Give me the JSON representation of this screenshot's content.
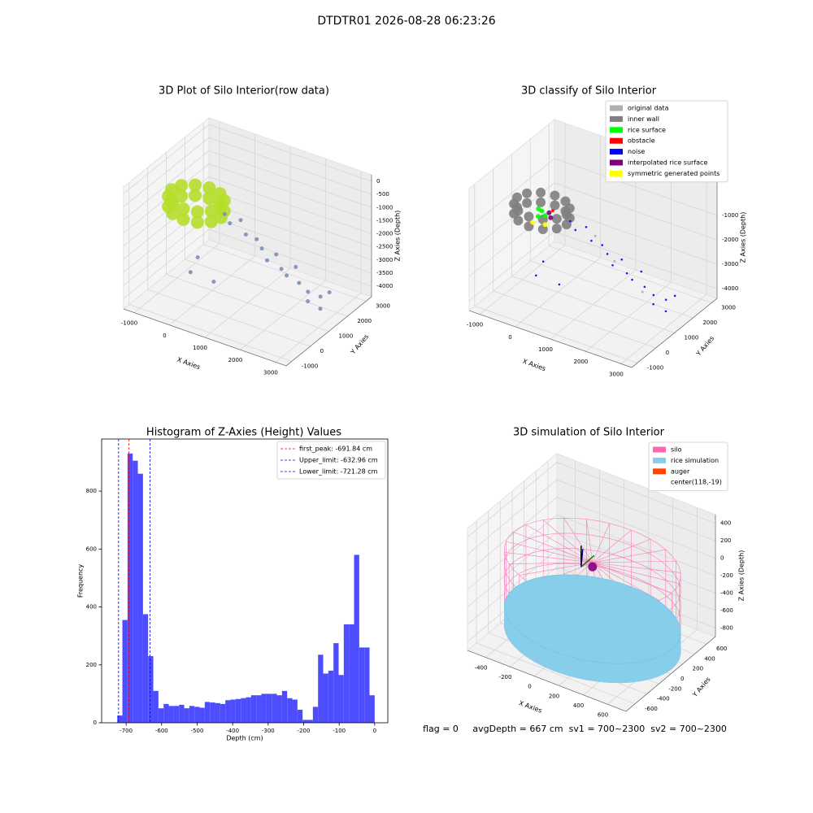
{
  "title": "DTDTR01 2026-08-28 06:23:26",
  "footer": "flag = 0     avgDepth = 667 cm  sv1 = 700~2300  sv2 = 700~2300",
  "chart_data": [
    {
      "type": "scatter3d",
      "title": "3D Plot of Silo Interior(row data)",
      "xlabel": "X Axies",
      "ylabel": "Y Axies",
      "zlabel": "Z Axies (Depth)",
      "xlim": [
        -1300,
        3300
      ],
      "ylim": [
        -1300,
        3300
      ],
      "zlim": [
        -4400,
        250
      ],
      "xticks": [
        -1000,
        0,
        1000,
        2000,
        3000
      ],
      "yticks": [
        -1000,
        0,
        1000,
        2000,
        3000
      ],
      "zticks": [
        0,
        -500,
        -1000,
        -1500,
        -2000,
        -2500,
        -3000,
        -3500,
        -4000
      ],
      "series": [
        {
          "color": "#b5de2b",
          "x": [
            250,
            156,
            -100,
            -450,
            -800,
            -1056,
            -1150,
            -1056,
            -800,
            -450,
            -100,
            156,
            250,
            156,
            -100,
            -450,
            -800,
            -1056,
            -1150,
            -1056,
            -800,
            -450,
            -100,
            156
          ],
          "y": [
            1000,
            1350,
            1606,
            1700,
            1606,
            1350,
            1000,
            650,
            394,
            300,
            394,
            650,
            1000,
            1350,
            1606,
            1700,
            1606,
            1350,
            1000,
            650,
            394,
            300,
            394,
            650
          ],
          "z": [
            -1100,
            -1100,
            -1100,
            -1100,
            -1100,
            -1100,
            -1100,
            -1100,
            -1100,
            -1100,
            -1100,
            -1100,
            -1500,
            -1500,
            -1500,
            -1500,
            -1500,
            -1500,
            -1500,
            -1500,
            -1500,
            -1500,
            -1500,
            -1500
          ]
        },
        {
          "color": "#7d8fb3",
          "x": [
            300,
            500,
            700,
            900,
            1100,
            1300,
            1500,
            1600,
            1800,
            2000,
            2100,
            2300,
            2500,
            2600,
            2800,
            2900,
            3000,
            -200,
            -300,
            200
          ],
          "y": [
            1100,
            1000,
            1200,
            1100,
            1300,
            1200,
            1100,
            1400,
            1300,
            1200,
            1500,
            1300,
            1400,
            1200,
            1500,
            1300,
            1600,
            600,
            400,
            700
          ],
          "z": [
            -1400,
            -1600,
            -1500,
            -1900,
            -2100,
            -2300,
            -2600,
            -2500,
            -2900,
            -3000,
            -2800,
            -3200,
            -3500,
            -3700,
            -3600,
            -3900,
            -3400,
            -3000,
            -3500,
            -3800
          ]
        }
      ]
    },
    {
      "type": "scatter3d",
      "title": "3D classify of Silo Interior",
      "xlabel": "X Axies",
      "ylabel": "Y Axies",
      "zlabel": "Z Axies (Depth)",
      "xlim": [
        -1300,
        3300
      ],
      "ylim": [
        -1300,
        3300
      ],
      "zlim": [
        -4400,
        600
      ],
      "xticks": [
        -1000,
        0,
        1000,
        2000,
        3000
      ],
      "yticks": [
        -1000,
        0,
        1000,
        2000,
        3000
      ],
      "zticks": [
        -1000,
        -2000,
        -3000,
        -4000
      ],
      "legend": "upper right",
      "series": [
        {
          "name": "original data",
          "color": "#b0b0b0",
          "x": [
            1500,
            2500,
            800
          ],
          "y": [
            1200,
            800,
            1500
          ],
          "z": [
            -2500,
            -3000,
            -2000
          ]
        },
        {
          "name": "inner wall",
          "color": "#808080",
          "x": [
            250,
            156,
            -100,
            -450,
            -800,
            -1056,
            -1150,
            -1056,
            -800,
            -450,
            -100,
            156,
            250,
            156,
            -100,
            -450,
            -800,
            -1056,
            -1150,
            -1056,
            -800,
            -450,
            -100,
            156
          ],
          "y": [
            1000,
            1350,
            1606,
            1700,
            1606,
            1350,
            1000,
            650,
            394,
            300,
            394,
            650,
            1000,
            1350,
            1606,
            1700,
            1606,
            1350,
            1000,
            650,
            394,
            300,
            394,
            650
          ],
          "z": [
            -1100,
            -1100,
            -1100,
            -1100,
            -1100,
            -1100,
            -1100,
            -1100,
            -1100,
            -1100,
            -1100,
            -1100,
            -1500,
            -1500,
            -1500,
            -1500,
            -1500,
            -1500,
            -1500,
            -1500,
            -1500,
            -1500,
            -1500,
            -1500
          ]
        },
        {
          "name": "rice surface",
          "color": "#00ff00",
          "x": [
            -450,
            -300,
            -600,
            -450
          ],
          "y": [
            1000,
            900,
            1100,
            800
          ],
          "z": [
            -1300,
            -1350,
            -1350,
            -1400
          ]
        },
        {
          "name": "obstacle",
          "color": "#ff0000",
          "x": [
            -300
          ],
          "y": [
            1300
          ],
          "z": [
            -1400
          ]
        },
        {
          "name": "noise",
          "color": "#0000ff",
          "x": [
            300,
            500,
            700,
            900,
            1100,
            1300,
            1500,
            1600,
            1800,
            2000,
            2100,
            2300,
            2500,
            2600,
            2800,
            2900,
            3000,
            -200,
            -300,
            200
          ],
          "y": [
            1100,
            1000,
            1200,
            1100,
            1300,
            1200,
            1100,
            1400,
            1300,
            1200,
            1500,
            1300,
            1400,
            1200,
            1500,
            1300,
            1600,
            600,
            400,
            700
          ],
          "z": [
            -1400,
            -1600,
            -1500,
            -1900,
            -2100,
            -2300,
            -2600,
            -2500,
            -2900,
            -3000,
            -2800,
            -3200,
            -3500,
            -3700,
            -3600,
            -3900,
            -3400,
            -3000,
            -3500,
            -3800
          ]
        },
        {
          "name": "interpolated rice surface",
          "color": "#800080",
          "x": [
            -200,
            -350
          ],
          "y": [
            1000,
            1200
          ],
          "z": [
            -1450,
            -1450
          ]
        },
        {
          "name": "symmetric generated points",
          "color": "#ffff00",
          "x": [
            -500,
            -200
          ],
          "y": [
            600,
            700
          ],
          "z": [
            -1550,
            -1550
          ]
        }
      ]
    },
    {
      "type": "histogram",
      "title": "Histogram of Z-Axies (Height) Values",
      "xlabel": "Depth (cm)",
      "ylabel": "Frequency",
      "color": "#4d4dff",
      "xlim": [
        -769,
        37
      ],
      "ylim": [
        0,
        980
      ],
      "xticks": [
        -700,
        -600,
        -500,
        -400,
        -300,
        -200,
        -100,
        0
      ],
      "yticks": [
        0,
        200,
        400,
        600,
        800
      ],
      "bins": [
        -725,
        -710.5,
        -696,
        -681.5,
        -667,
        -652.5,
        -638,
        -623.5,
        -609,
        -594.5,
        -580,
        -565.5,
        -551,
        -536.5,
        -522,
        -507.5,
        -493,
        -478.5,
        -464,
        -449.5,
        -435,
        -420.5,
        -406,
        -391.5,
        -377,
        -362.5,
        -348,
        -333.5,
        -319,
        -304.5,
        -290,
        -275.5,
        -261,
        -246.5,
        -232,
        -217.5,
        -203,
        -188.5,
        -174,
        -159.5,
        -145,
        -130.5,
        -116,
        -101.5,
        -87,
        -72.5,
        -58,
        -43.5,
        -29,
        -14.5,
        0
      ],
      "counts": [
        25,
        355,
        930,
        905,
        860,
        375,
        230,
        110,
        50,
        65,
        58,
        58,
        62,
        50,
        58,
        55,
        52,
        72,
        70,
        68,
        65,
        78,
        80,
        82,
        85,
        88,
        95,
        95,
        100,
        100,
        100,
        95,
        110,
        85,
        80,
        45,
        10,
        10,
        55,
        235,
        170,
        180,
        275,
        165,
        340,
        340,
        580,
        260,
        260,
        95
      ],
      "legend": "upper right",
      "vlines": [
        {
          "name": "first_peak: -691.84 cm",
          "value": -691.84,
          "color": "#ff0000"
        },
        {
          "name": "Upper_limit: -632.96 cm",
          "value": -632.96,
          "color": "#0000ff"
        },
        {
          "name": "Lower_limit: -721.28 cm",
          "value": -721.28,
          "color": "#0000ff"
        }
      ]
    },
    {
      "type": "scatter3d",
      "title": "3D simulation of Silo Interior",
      "xlabel": "X Axies",
      "ylabel": "Y Axies",
      "zlabel": "Z Axies (Depth)",
      "xlim": [
        -550,
        750
      ],
      "ylim": [
        -750,
        750
      ],
      "zlim": [
        -900,
        500
      ],
      "xticks": [
        -400,
        -200,
        0,
        200,
        400,
        600
      ],
      "yticks": [
        -600,
        -400,
        -200,
        0,
        200,
        400,
        600
      ],
      "zticks": [
        -800,
        -600,
        -400,
        -200,
        0,
        200,
        400
      ],
      "legend": "upper right",
      "series": [
        {
          "name": "silo",
          "color": "#ff69b4",
          "kind": "cylinder",
          "center": [
            118,
            -19
          ],
          "radius": 650,
          "z": [
            -820,
            50
          ]
        },
        {
          "name": "rice simulation",
          "color": "#87ceeb",
          "kind": "disc",
          "center": [
            118,
            -19
          ],
          "radius": 650,
          "z": [
            -820,
            -600
          ]
        },
        {
          "name": "auger",
          "color": "#ff4500",
          "marker_color": "#800080",
          "x": [
            118
          ],
          "y": [
            -19
          ],
          "z": [
            0
          ]
        },
        {
          "name": "center(118,-19)",
          "color": "#ffffff"
        }
      ]
    }
  ]
}
